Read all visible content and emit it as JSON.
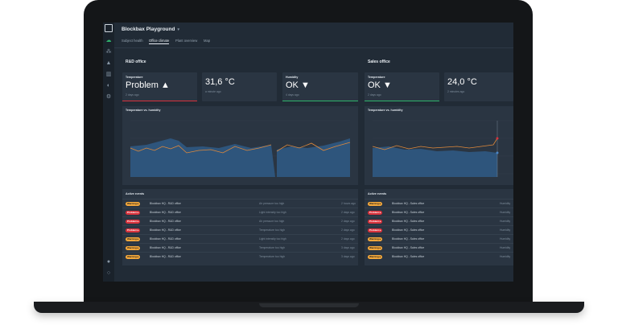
{
  "app": {
    "title": "Blockbax Playground"
  },
  "tabs": [
    {
      "label": "Subject health"
    },
    {
      "label": "Office climate"
    },
    {
      "label": "Plant overview"
    },
    {
      "label": "Map"
    }
  ],
  "sidebar": {
    "icons": [
      "logo-icon",
      "dashboard-icon",
      "subjects-icon",
      "alerts-icon",
      "metrics-icon",
      "integrations-icon",
      "settings-icon",
      "help-icon",
      "profile-icon"
    ]
  },
  "sections": [
    {
      "title": "R&D office",
      "cards": [
        {
          "label": "Temperature",
          "value": "Problem ▲",
          "sub": "2 days ago",
          "bar_color": "#d8323c"
        },
        {
          "label": "",
          "value": "31,6 °C",
          "sub": "a minute ago",
          "bar_color": ""
        },
        {
          "label": "Humidity",
          "value": "OK ▼",
          "sub": "4 days ago",
          "bar_color": "#2fb36c"
        }
      ],
      "chart_title": "Temperature vs. humidity",
      "events_title": "Active events",
      "events": [
        {
          "level": "Warning",
          "badge": "Warning ▸",
          "subject": "Blockbax HQ - R&D office",
          "desc": "Air pressure too high",
          "time": "2 hours ago"
        },
        {
          "level": "Problem",
          "badge": "Problem ▸",
          "subject": "Blockbax HQ - R&D office",
          "desc": "Light intensity too high",
          "time": "2 days ago"
        },
        {
          "level": "Problem",
          "badge": "Problem ▸",
          "subject": "Blockbax HQ - R&D office",
          "desc": "Air pressure too high",
          "time": "2 days ago"
        },
        {
          "level": "Problem",
          "badge": "Problem ▸",
          "subject": "Blockbax HQ - R&D office",
          "desc": "Temperature too high",
          "time": "2 days ago"
        },
        {
          "level": "Warning",
          "badge": "Warning ▸",
          "subject": "Blockbax HQ - R&D office",
          "desc": "Light intensity too high",
          "time": "2 days ago"
        },
        {
          "level": "Warning",
          "badge": "Warning ▸",
          "subject": "Blockbax HQ - R&D office",
          "desc": "Temperature too high",
          "time": "3 days ago"
        },
        {
          "level": "Warning",
          "badge": "Warning ▸",
          "subject": "Blockbax HQ - R&D office",
          "desc": "Temperature too high",
          "time": "3 days ago"
        }
      ]
    },
    {
      "title": "Sales office",
      "cards": [
        {
          "label": "Temperature",
          "value": "OK ▼",
          "sub": "2 days ago",
          "bar_color": "#2fb36c"
        },
        {
          "label": "",
          "value": "24,0 °C",
          "sub": "2 minutes ago",
          "bar_color": ""
        }
      ],
      "chart_title": "Temperature vs. humidity",
      "events_title": "Active events",
      "events": [
        {
          "level": "Warning",
          "badge": "Warning ▸",
          "subject": "Blockbax HQ - Sales office",
          "desc": "Humidity",
          "time": ""
        },
        {
          "level": "Problem",
          "badge": "Problem ▸",
          "subject": "Blockbax HQ - Sales office",
          "desc": "Humidity",
          "time": ""
        },
        {
          "level": "Problem",
          "badge": "Problem ▸",
          "subject": "Blockbax HQ - Sales office",
          "desc": "Humidity",
          "time": ""
        },
        {
          "level": "Problem",
          "badge": "Problem ▸",
          "subject": "Blockbax HQ - Sales office",
          "desc": "Humidity",
          "time": ""
        },
        {
          "level": "Warning",
          "badge": "Warning ▸",
          "subject": "Blockbax HQ - Sales office",
          "desc": "Humidity",
          "time": ""
        },
        {
          "level": "Warning",
          "badge": "Warning ▸",
          "subject": "Blockbax HQ - Sales office",
          "desc": "Humidity",
          "time": ""
        },
        {
          "level": "Warning",
          "badge": "Warning ▸",
          "subject": "Blockbax HQ - Sales office",
          "desc": "Humidity",
          "time": ""
        }
      ]
    }
  ],
  "colors": {
    "temperature": "#e0893a",
    "humidity": "#4a86c8",
    "area": "#2f5a86"
  }
}
